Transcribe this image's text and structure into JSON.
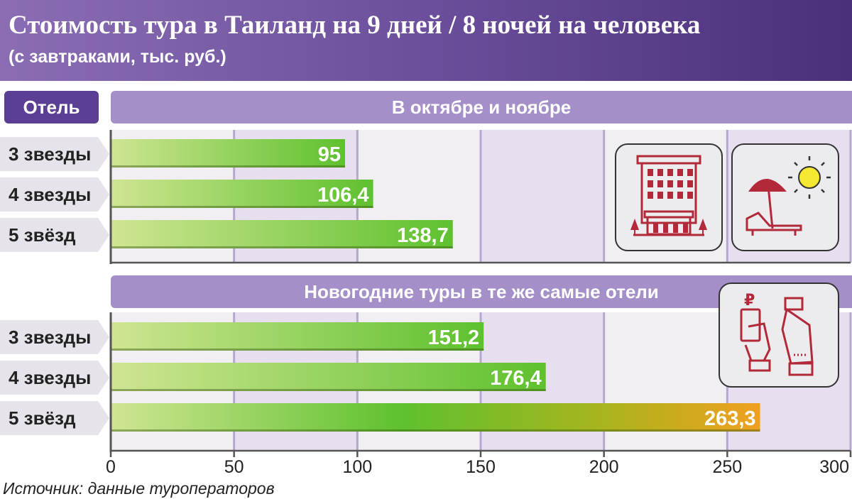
{
  "title": "Стоимость тура в Таиланд на 9 дней / 8 ночей на человека",
  "subtitle": "(с завтраками, тыс. руб.)",
  "column_header": "Отель",
  "source": "Источник: данные туроператоров",
  "colors": {
    "header_purple": "#6b4f9c",
    "bar_start": "#c8e08a",
    "bar_green": "#5ec12e",
    "bar_orange": "#f0a020",
    "icon_red": "#b22a3a"
  },
  "icons": [
    "hotel-building-icon",
    "beach-umbrella-sun-icon",
    "payment-hands-icon"
  ],
  "chart_data": {
    "type": "bar",
    "orientation": "horizontal",
    "xlim": [
      0,
      300
    ],
    "xticks": [
      "0",
      "50",
      "100",
      "150",
      "200",
      "250",
      "300"
    ],
    "grid": true,
    "panels": [
      {
        "title": "В октябре и ноябре",
        "categories": [
          "3 звезды",
          "4 звезды",
          "5 звёзд"
        ],
        "values": [
          95,
          106.4,
          138.7
        ],
        "labels": [
          "95",
          "106,4",
          "138,7"
        ]
      },
      {
        "title": "Новогодние туры в те же самые отели",
        "categories": [
          "3 звезды",
          "4 звезды",
          "5 звёзд"
        ],
        "values": [
          151.2,
          176.4,
          263.3
        ],
        "labels": [
          "151,2",
          "176,4",
          "263,3"
        ]
      }
    ]
  }
}
